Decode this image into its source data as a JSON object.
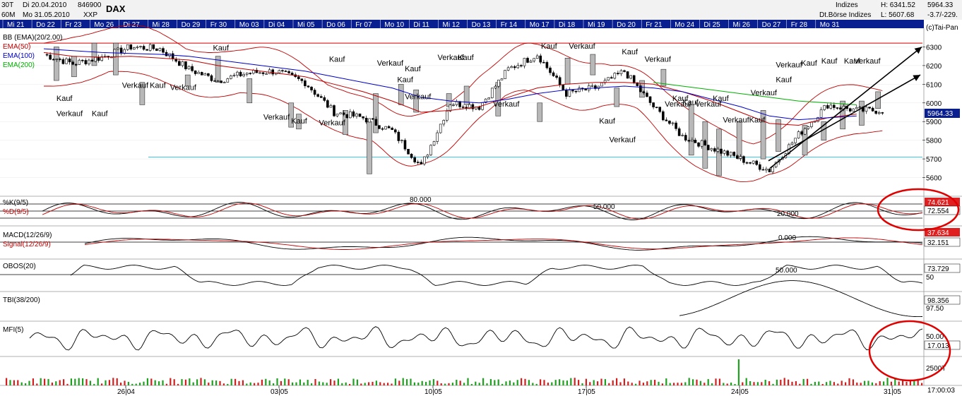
{
  "header": {
    "timeframe": "30T",
    "interval": "60M",
    "date_from": "Di 20.04.2010",
    "date_to": "Mo 31.05.2010",
    "code": "846900",
    "exchange": "XXP",
    "title": "DAX",
    "category": "Indizes",
    "source": "Dt.Börse Indizes",
    "high": "H: 6341.52",
    "low": "L: 5607.68",
    "last": "5964.33",
    "change": "-3.7/-229.",
    "copyright": "(c)Tai-Pan"
  },
  "day_labels": [
    "Mi 21",
    "Do 22",
    "Fr 23",
    "Mo 26",
    "Di 27",
    "Mi 28",
    "Do 29",
    "Fr 30",
    "Mo 03",
    "Di 04",
    "Mi 05",
    "Do 06",
    "Fr 07",
    "Mo 10",
    "Di 11",
    "Mi 12",
    "Do 13",
    "Fr 14",
    "Mo 17",
    "Di 18",
    "Mi 19",
    "Do 20",
    "Fr 21",
    "Mo 24",
    "Di 25",
    "Mi 26",
    "Do 27",
    "Fr 28",
    "Mo 31"
  ],
  "date_axis": [
    "26|04",
    "03|05",
    "10|05",
    "17|05",
    "24|05",
    "31|05"
  ],
  "time_label": "17:00:03",
  "colors": {
    "day_bar": "#0a1f8f",
    "bb": "#c00000",
    "ema50": "#c00000",
    "ema100": "#0000c8",
    "ema200": "#00b000",
    "resistance": "#e03030",
    "support": "#40c8e8",
    "price_badge": "#0a1f8f",
    "stoch_k_badge": "#e02020",
    "highlight": "#e00000"
  },
  "price_panel": {
    "legend": [
      "BB (EMA)(20/2.00)",
      "EMA(50)",
      "EMA(100)",
      "EMA(200)"
    ],
    "last_label": "5964.33"
  },
  "indicators": {
    "stoch": {
      "k_label": "%K(9/5)",
      "d_label": "%D(9/5)",
      "k_value": "74.621",
      "d_value": "72.554",
      "level_high": "80.000",
      "level_mid": "50.000",
      "level_low": "20.000"
    },
    "macd": {
      "macd_label": "MACD(12/26/9)",
      "signal_label": "Signal(12/26/9)",
      "macd_value": "37.634",
      "signal_value": "32.151",
      "zero": "0.000"
    },
    "obos": {
      "label": "OBOS(20)",
      "value": "73.729",
      "level": "50.000",
      "tick": "50"
    },
    "tbi": {
      "label": "TBI(38/200)",
      "value": "98.356",
      "tick": "97.50"
    },
    "mfi": {
      "label": "MFI(5)",
      "value": "17.013",
      "tick": "50.00"
    },
    "volume": {
      "tick": "2500T"
    }
  },
  "chart_data": {
    "type": "line",
    "title": "DAX",
    "ylim": [
      5500,
      6400
    ],
    "y_ticks": [
      5600,
      5700,
      5800,
      5900,
      6000,
      6100,
      6200,
      6300
    ],
    "resistance_level": 6320,
    "support_level": 5710,
    "x": [
      "Mi 21",
      "Do 22",
      "Fr 23",
      "Mo 26",
      "Di 27",
      "Mi 28",
      "Do 29",
      "Fr 30",
      "Mo 03",
      "Di 04",
      "Mi 05",
      "Do 06",
      "Fr 07",
      "Mo 10",
      "Di 11",
      "Mi 12",
      "Do 13",
      "Fr 14",
      "Mo 17",
      "Di 18",
      "Mi 19",
      "Do 20",
      "Fr 21",
      "Mo 24",
      "Di 25",
      "Mi 26",
      "Do 27",
      "Fr 28",
      "Mo 31"
    ],
    "series": [
      {
        "name": "DAX",
        "values": [
          6260,
          6210,
          6245,
          6300,
          6290,
          6180,
          6120,
          6160,
          6170,
          6110,
          5950,
          5920,
          5850,
          5660,
          6000,
          5980,
          6180,
          6260,
          6050,
          6080,
          6170,
          5980,
          5820,
          5760,
          5700,
          5640,
          5830,
          5990,
          5960
        ]
      },
      {
        "name": "EMA(50)",
        "values": [
          6270,
          6250,
          6245,
          6250,
          6240,
          6230,
          6200,
          6180,
          6160,
          6140,
          6100,
          6060,
          6010,
          5950,
          5960,
          5980,
          6030,
          6080,
          6100,
          6110,
          6110,
          6100,
          6060,
          6010,
          5950,
          5890,
          5880,
          5920,
          5940
        ]
      },
      {
        "name": "EMA(100)",
        "values": [
          6290,
          6280,
          6270,
          6265,
          6260,
          6250,
          6230,
          6210,
          6190,
          6170,
          6140,
          6110,
          6080,
          6030,
          6010,
          6000,
          6020,
          6050,
          6070,
          6080,
          6090,
          6080,
          6060,
          6020,
          5980,
          5930,
          5910,
          5920,
          5930
        ]
      },
      {
        "name": "EMA(200)",
        "values": [
          null,
          null,
          null,
          null,
          null,
          null,
          null,
          null,
          null,
          null,
          null,
          null,
          null,
          null,
          null,
          null,
          null,
          null,
          null,
          null,
          null,
          6110,
          6090,
          6070,
          6050,
          6030,
          6010,
          6000,
          5990
        ]
      }
    ],
    "annotations": [
      {
        "text": "Kauf",
        "day": 6.7,
        "price": 6280
      },
      {
        "text": "Kauf",
        "day": 0.5,
        "price": 6010
      },
      {
        "text": "Verkauf",
        "day": 0.5,
        "price": 5930
      },
      {
        "text": "Kauf",
        "day": 1.9,
        "price": 5930
      },
      {
        "text": "Verkauf",
        "day": 3.1,
        "price": 6080
      },
      {
        "text": "Kauf",
        "day": 4.2,
        "price": 6080
      },
      {
        "text": "Verkauf",
        "day": 5.0,
        "price": 6070
      },
      {
        "text": "Verkauf",
        "day": 8.7,
        "price": 5910
      },
      {
        "text": "Kauf",
        "day": 9.8,
        "price": 5890
      },
      {
        "text": "Verkauf",
        "day": 10.9,
        "price": 5880
      },
      {
        "text": "Kauf",
        "day": 11.3,
        "price": 6220
      },
      {
        "text": "Verkauf",
        "day": 13.2,
        "price": 6200
      },
      {
        "text": "Kauf",
        "day": 14.3,
        "price": 6170
      },
      {
        "text": "Verkauf",
        "day": 15.6,
        "price": 6230
      },
      {
        "text": "Kauf",
        "day": 16.4,
        "price": 6230
      },
      {
        "text": "Kauf",
        "day": 14.0,
        "price": 6110
      },
      {
        "text": "Verkauf",
        "day": 14.3,
        "price": 6020
      },
      {
        "text": "Verkauf",
        "day": 17.8,
        "price": 5980
      },
      {
        "text": "Kauf",
        "day": 19.7,
        "price": 6290
      },
      {
        "text": "Verkauf",
        "day": 20.8,
        "price": 6290
      },
      {
        "text": "Kauf",
        "day": 22.0,
        "price": 5890
      },
      {
        "text": "Verkauf",
        "day": 22.4,
        "price": 5790
      },
      {
        "text": "Kauf",
        "day": 22.9,
        "price": 6260
      },
      {
        "text": "Verkauf",
        "day": 23.8,
        "price": 6220
      },
      {
        "text": "Kauf",
        "day": 24.9,
        "price": 6010
      },
      {
        "text": "Verkauf",
        "day": 24.6,
        "price": 5980
      },
      {
        "text": "Kauf",
        "day": 25.3,
        "price": 5990
      },
      {
        "text": "Verkauf",
        "day": 25.8,
        "price": 5980
      },
      {
        "text": "Kauf",
        "day": 26.5,
        "price": 6010
      },
      {
        "text": "VerkaufKauf",
        "day": 26.9,
        "price": 5895
      },
      {
        "text": "Verkauf",
        "day": 28.0,
        "price": 6040
      },
      {
        "text": "Kauf",
        "day": 29.0,
        "price": 6110
      },
      {
        "text": "Verkauf",
        "day": 29.0,
        "price": 6190
      },
      {
        "text": "Kauf",
        "day": 30.0,
        "price": 6200
      },
      {
        "text": "Kauf",
        "day": 30.8,
        "price": 6210
      },
      {
        "text": "Kauf",
        "day": 31.7,
        "price": 6210
      },
      {
        "text": "Verkauf",
        "day": 32.1,
        "price": 6210
      }
    ]
  }
}
